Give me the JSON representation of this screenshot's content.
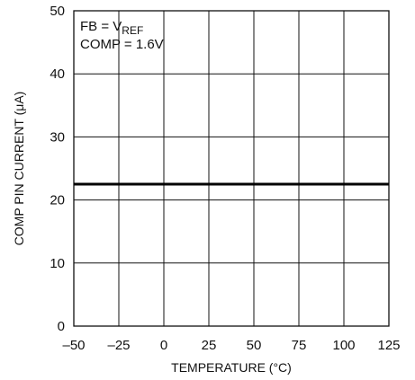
{
  "chart_data": {
    "type": "line",
    "xlabel": "TEMPERATURE (°C)",
    "ylabel": "COMP PIN CURRENT (μA)",
    "xlim": [
      -50,
      125
    ],
    "ylim": [
      0,
      50
    ],
    "x_ticks": [
      "–50",
      "–25",
      "0",
      "25",
      "50",
      "75",
      "100",
      "125"
    ],
    "y_ticks": [
      "0",
      "10",
      "20",
      "30",
      "40",
      "50"
    ],
    "grid": true,
    "annotation": {
      "line1_prefix": "FB = V",
      "line1_subscript": "REF",
      "line2": "COMP = 1.6V"
    },
    "series": [
      {
        "x": [
          -50,
          125
        ],
        "y": [
          22.5,
          22.5
        ]
      }
    ]
  }
}
